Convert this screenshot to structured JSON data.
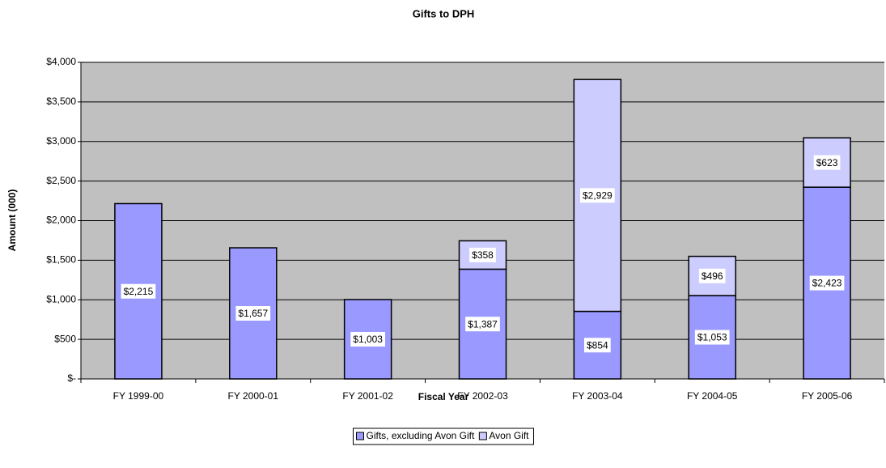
{
  "chart_data": {
    "type": "stacked_bar",
    "title": "Gifts to DPH",
    "x_label": "Fiscal Year",
    "y_label": "Amount (000)",
    "categories": [
      "FY 1999-00",
      "FY 2000-01",
      "FY 2001-02",
      "FY 2002-03",
      "FY 2003-04",
      "FY 2004-05",
      "FY 2005-06"
    ],
    "series": [
      {
        "name": "Gifts, excluding Avon Gift",
        "color": "#9999ff",
        "values": [
          2215,
          1657,
          1003,
          1387,
          854,
          1053,
          2423
        ],
        "value_labels": [
          "$2,215",
          "$1,657",
          "$1,003",
          "$1,387",
          "$854",
          "$1,053",
          "$2,423"
        ]
      },
      {
        "name": "Avon Gift",
        "color": "#ccccff",
        "values": [
          null,
          null,
          null,
          358,
          2929,
          496,
          623
        ],
        "value_labels": [
          null,
          null,
          null,
          "$358",
          "$2,929",
          "$496",
          "$623"
        ]
      }
    ],
    "ylim": [
      0,
      4000
    ],
    "yticks": [
      {
        "value": 0,
        "label": "$-"
      },
      {
        "value": 500,
        "label": "$500"
      },
      {
        "value": 1000,
        "label": "$1,000"
      },
      {
        "value": 1500,
        "label": "$1,500"
      },
      {
        "value": 2000,
        "label": "$2,000"
      },
      {
        "value": 2500,
        "label": "$2,500"
      },
      {
        "value": 3000,
        "label": "$3,000"
      },
      {
        "value": 3500,
        "label": "$3,500"
      },
      {
        "value": 4000,
        "label": "$4,000"
      }
    ],
    "grid": true,
    "plot_background": "#c0c0c0",
    "legend": "bottom"
  }
}
